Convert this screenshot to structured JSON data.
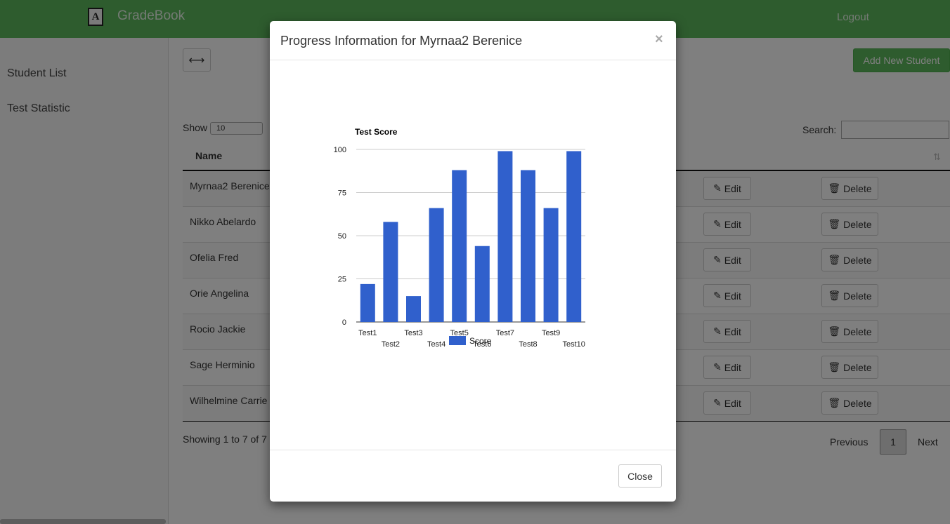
{
  "navbar": {
    "brand_logo": "A",
    "brand": "GradeBook",
    "logout": "Logout"
  },
  "sidebar": {
    "items": [
      {
        "label": "Student List"
      },
      {
        "label": "Test Statistic"
      }
    ]
  },
  "toolbar": {
    "toggle_icon": "⟷",
    "add_student": "Add New Student"
  },
  "table": {
    "show_label": "Show",
    "show_select": "10",
    "search_label": "Search:",
    "name_header": "Name",
    "rows": [
      {
        "name": "Myrnaa2 Berenice"
      },
      {
        "name": "Nikko Abelardo"
      },
      {
        "name": "Ofelia Fred"
      },
      {
        "name": "Orie Angelina"
      },
      {
        "name": "Rocio Jackie"
      },
      {
        "name": "Sage Herminio"
      },
      {
        "name": "Wilhelmine Carrie"
      }
    ],
    "edit_label": "Edit",
    "delete_label": "Delete",
    "info": "Showing 1 to 7 of 7",
    "previous": "Previous",
    "page": "1",
    "next": "Next"
  },
  "modal": {
    "title": "Progress Information for Myrnaa2 Berenice",
    "close_x": "×",
    "close_button": "Close"
  },
  "chart_data": {
    "type": "bar",
    "title": "Test Score",
    "categories": [
      "Test1",
      "Test2",
      "Test3",
      "Test4",
      "Test5",
      "Test6",
      "Test7",
      "Test8",
      "Test9",
      "Test10"
    ],
    "series": [
      {
        "name": "Score",
        "values": [
          22,
          58,
          15,
          66,
          88,
          44,
          99,
          88,
          66,
          99
        ],
        "color": "#3060cc"
      }
    ],
    "ylim": [
      0,
      100
    ],
    "yticks": [
      0,
      25,
      50,
      75,
      100
    ],
    "grid": true,
    "legend": "bottom"
  },
  "colors": {
    "accent": "#5cb85c",
    "bar": "#3060cc"
  },
  "icons": {
    "edit": "edit-icon",
    "delete": "trash-icon",
    "sort": "sort-icon"
  }
}
